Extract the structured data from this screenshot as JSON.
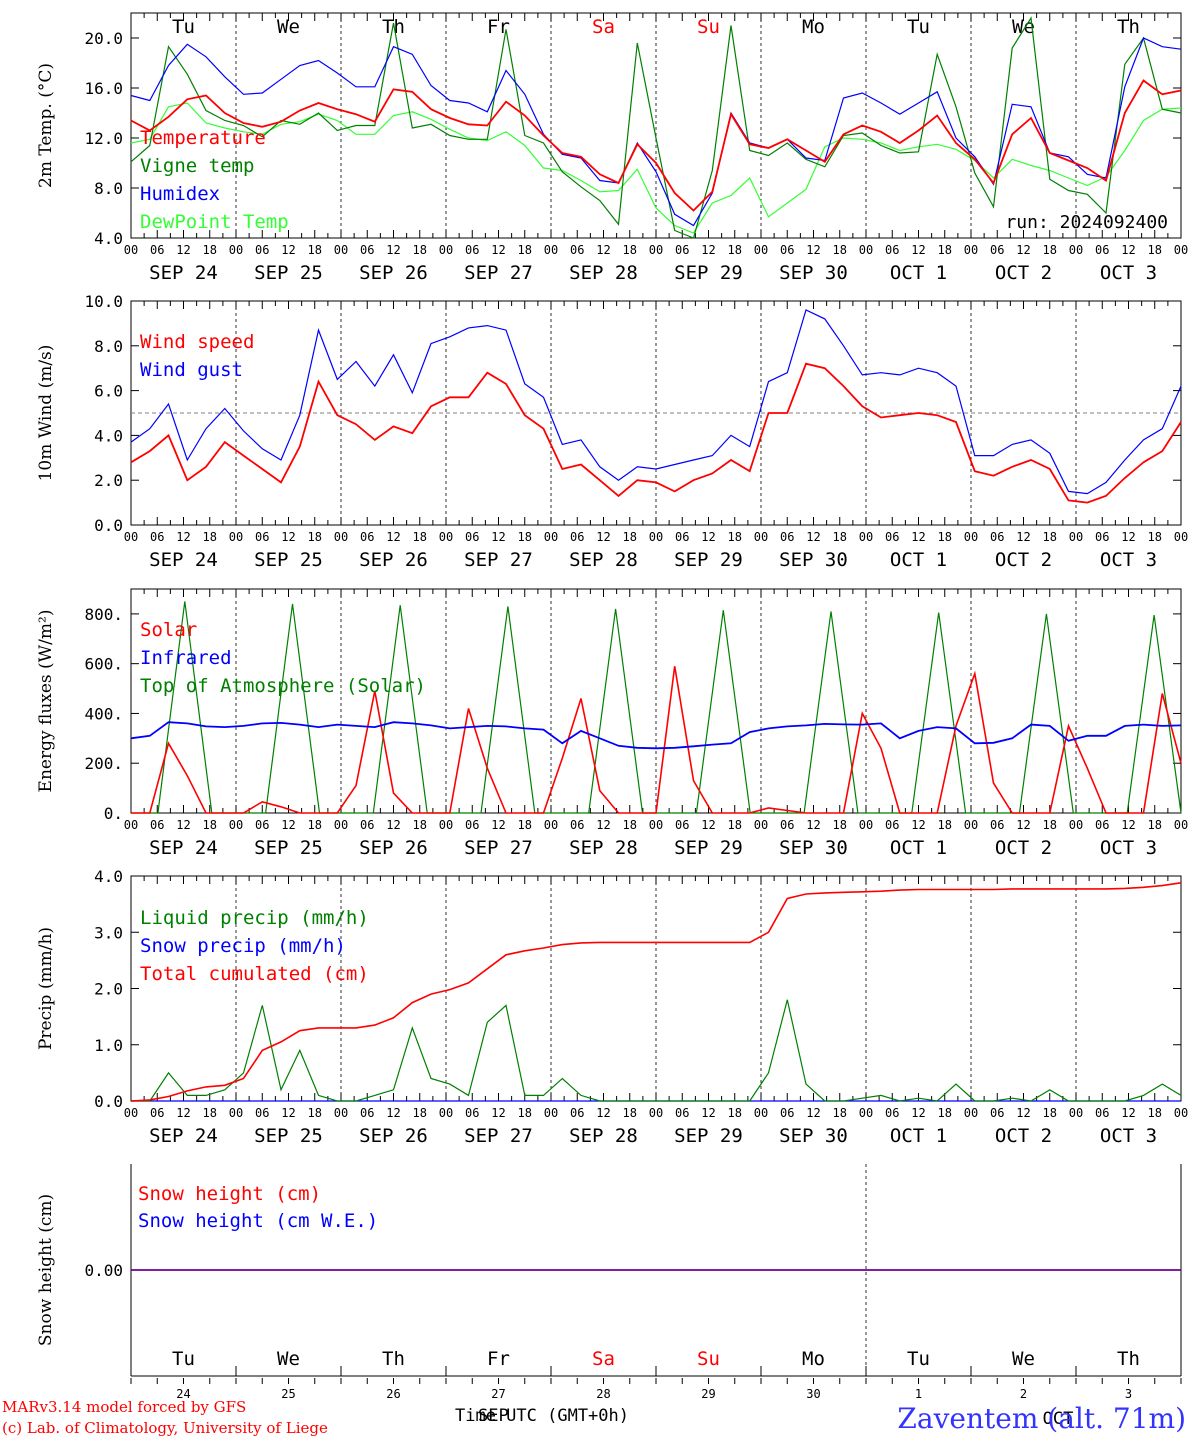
{
  "run_label": "run: 2024092400",
  "credits": {
    "line1": "MARv3.14 model forced by GFS",
    "line2": "(c) Lab. of Climatology, University of Liege"
  },
  "station": "Zaventem (alt. 71m)",
  "xaxis_title": "Time UTC (GMT+0h)",
  "xaxis_sep_month": "SEP",
  "xaxis_oct_month": "OCT",
  "colors": {
    "red": "#ff0000",
    "dark_green": "#008000",
    "blue": "#0000ff",
    "light_green": "#33ff33",
    "grey_line": "#808080",
    "purple": "#800080"
  },
  "day_letters": [
    "Tu",
    "We",
    "Th",
    "Fr",
    "Sa",
    "Su",
    "Mo",
    "Tu",
    "We",
    "Th"
  ],
  "weekend_day_indices": [
    4,
    5
  ],
  "date_labels": [
    "SEP 24",
    "SEP 25",
    "SEP 26",
    "SEP 27",
    "SEP 28",
    "SEP 29",
    "SEP 30",
    "OCT  1",
    "OCT  2",
    "OCT  3"
  ],
  "day_numbers": [
    "24",
    "25",
    "26",
    "27",
    "28",
    "29",
    "30",
    "1",
    "2",
    "3"
  ],
  "hour_ticks": [
    "00",
    "06",
    "12",
    "18"
  ],
  "end_tick": "00",
  "chart_data": [
    {
      "type": "line",
      "panel": "temperature",
      "ylabel": "2m Temp. (°C)",
      "ylim": [
        4,
        22
      ],
      "y_ticks": [
        "4.0",
        "8.0",
        "12.0",
        "16.0",
        "20.0"
      ],
      "x_step_hours": 6,
      "series": [
        {
          "name": "Temperature",
          "color": "red",
          "values": [
            13.4,
            12.6,
            13.7,
            15.1,
            15.4,
            14.0,
            13.2,
            12.9,
            13.3,
            14.2,
            14.8,
            14.3,
            13.9,
            13.3,
            15.9,
            15.7,
            14.3,
            13.6,
            13.1,
            13.0,
            14.9,
            13.8,
            12.2,
            10.8,
            10.5,
            9.1,
            8.4,
            11.5,
            10.0,
            7.6,
            6.2,
            7.7,
            13.9,
            11.5,
            11.2,
            11.9,
            11.0,
            10.1,
            12.3,
            13.0,
            12.5,
            11.6,
            12.6,
            13.8,
            11.6,
            10.3,
            8.4,
            12.3,
            13.6,
            10.8,
            10.2,
            9.6,
            8.6,
            14.0,
            16.6,
            15.5,
            15.8
          ]
        },
        {
          "name": "Vigne temp",
          "color": "dark_green",
          "values": [
            10.1,
            11.4,
            19.3,
            17.1,
            14.2,
            13.4,
            13.0,
            12.1,
            13.4,
            13.1,
            14.0,
            12.6,
            13.0,
            13.0,
            21.2,
            12.8,
            13.1,
            12.2,
            11.9,
            11.9,
            20.7,
            12.2,
            11.6,
            9.3,
            8.1,
            7.0,
            5.1,
            19.6,
            12.0,
            4.6,
            3.9,
            9.4,
            21.0,
            11.0,
            10.6,
            11.6,
            10.3,
            9.7,
            12.2,
            12.4,
            11.4,
            10.8,
            10.9,
            18.7,
            14.5,
            9.2,
            6.5,
            19.2,
            21.6,
            8.7,
            7.8,
            7.5,
            6.0,
            17.9,
            20.0,
            14.3,
            14.0
          ]
        },
        {
          "name": "Humidex",
          "color": "blue",
          "values": [
            15.4,
            15.0,
            17.8,
            19.5,
            18.5,
            16.9,
            15.5,
            15.6,
            16.7,
            17.8,
            18.2,
            17.2,
            16.1,
            16.1,
            19.3,
            18.7,
            16.2,
            15.0,
            14.8,
            14.1,
            17.4,
            15.5,
            12.3,
            10.7,
            10.4,
            8.6,
            8.4,
            11.6,
            9.3,
            5.9,
            5.0,
            7.6,
            14.0,
            11.6,
            11.2,
            11.9,
            10.4,
            10.2,
            15.2,
            15.6,
            14.8,
            13.9,
            14.8,
            15.7,
            12.0,
            10.5,
            8.3,
            14.7,
            14.5,
            10.8,
            10.5,
            9.1,
            8.8,
            16.1,
            20.0,
            19.3,
            19.1
          ]
        },
        {
          "name": "DewPoint Temp",
          "color": "light_green",
          "values": [
            11.6,
            11.9,
            14.5,
            14.8,
            13.2,
            12.8,
            12.5,
            12.3,
            13.1,
            13.3,
            13.9,
            13.4,
            12.3,
            12.3,
            13.8,
            14.1,
            13.5,
            12.7,
            12.0,
            11.8,
            12.5,
            11.4,
            9.6,
            9.4,
            8.6,
            7.7,
            7.8,
            9.5,
            6.4,
            5.0,
            4.4,
            6.8,
            7.4,
            8.8,
            5.7,
            6.8,
            7.9,
            11.3,
            12.0,
            11.9,
            11.6,
            11.0,
            11.3,
            11.5,
            11.1,
            10.2,
            8.8,
            10.3,
            9.8,
            9.4,
            8.8,
            8.2,
            8.9,
            11.0,
            13.4,
            14.3,
            14.4
          ]
        }
      ]
    },
    {
      "type": "line",
      "panel": "wind",
      "ylabel": "10m Wind (m/s)",
      "ylim": [
        0,
        10
      ],
      "y_ticks": [
        "0.0",
        "2.0",
        "4.0",
        "6.0",
        "8.0",
        "10.0"
      ],
      "reference_line": 5,
      "x_step_hours": 6,
      "series": [
        {
          "name": "Wind speed",
          "color": "red",
          "values": [
            2.8,
            3.3,
            4.0,
            2.0,
            2.6,
            3.7,
            3.1,
            2.5,
            1.9,
            3.5,
            6.4,
            4.9,
            4.5,
            3.8,
            4.4,
            4.1,
            5.3,
            5.7,
            5.7,
            6.8,
            6.3,
            4.9,
            4.3,
            2.5,
            2.7,
            2.0,
            1.3,
            2.0,
            1.9,
            1.5,
            2.0,
            2.3,
            2.9,
            2.4,
            5.0,
            5.0,
            7.2,
            7.0,
            6.2,
            5.3,
            4.8,
            4.9,
            5.0,
            4.9,
            4.6,
            2.4,
            2.2,
            2.6,
            2.9,
            2.5,
            1.1,
            1.0,
            1.3,
            2.1,
            2.8,
            3.3,
            4.6
          ]
        },
        {
          "name": "Wind gust",
          "color": "blue",
          "values": [
            3.7,
            4.3,
            5.4,
            2.9,
            4.3,
            5.2,
            4.2,
            3.4,
            2.9,
            4.9,
            8.7,
            6.5,
            7.3,
            6.2,
            7.6,
            5.9,
            8.1,
            8.4,
            8.8,
            8.9,
            8.7,
            6.3,
            5.7,
            3.6,
            3.8,
            2.6,
            2.0,
            2.6,
            2.5,
            2.7,
            2.9,
            3.1,
            4.0,
            3.5,
            6.4,
            6.8,
            9.6,
            9.2,
            8.0,
            6.7,
            6.8,
            6.7,
            7.0,
            6.8,
            6.2,
            3.1,
            3.1,
            3.6,
            3.8,
            3.2,
            1.5,
            1.4,
            1.9,
            2.9,
            3.8,
            4.3,
            6.2
          ]
        }
      ]
    },
    {
      "type": "line",
      "panel": "energy",
      "ylabel": "Energy fluxes (W/m²)",
      "ylim": [
        0,
        900
      ],
      "y_ticks": [
        "0.",
        "200.",
        "400.",
        "600.",
        "800."
      ],
      "x_step_hours": 6,
      "series": [
        {
          "name": "Solar",
          "color": "red",
          "values": [
            0,
            0,
            280,
            150,
            0,
            0,
            0,
            45,
            25,
            0,
            0,
            0,
            110,
            490,
            80,
            0,
            0,
            0,
            420,
            180,
            0,
            0,
            0,
            220,
            460,
            90,
            0,
            0,
            0,
            590,
            130,
            0,
            0,
            0,
            20,
            10,
            0,
            0,
            0,
            400,
            260,
            0,
            0,
            0,
            350,
            560,
            120,
            0,
            0,
            0,
            350,
            180,
            0,
            0,
            0,
            480,
            200
          ]
        },
        {
          "name": "Infrared",
          "color": "blue",
          "values": [
            300,
            310,
            365,
            360,
            348,
            345,
            350,
            360,
            362,
            355,
            345,
            355,
            350,
            345,
            365,
            360,
            352,
            340,
            345,
            350,
            348,
            340,
            335,
            280,
            330,
            300,
            270,
            262,
            260,
            262,
            268,
            275,
            280,
            325,
            340,
            348,
            352,
            358,
            356,
            355,
            360,
            300,
            330,
            345,
            340,
            280,
            282,
            300,
            355,
            350,
            290,
            310,
            310,
            350,
            355,
            350,
            352
          ]
        },
        {
          "name": "Top of Atmosphere (Solar)",
          "color": "dark_green",
          "values": [
            0,
            0,
            850,
            0,
            0,
            0,
            840,
            0,
            0,
            0,
            835,
            0,
            0,
            0,
            830,
            0,
            0,
            0,
            820,
            0,
            0,
            0,
            815,
            0,
            0,
            0,
            810,
            0,
            0,
            0,
            805,
            0,
            0,
            0,
            800,
            0,
            0,
            0,
            795,
            0
          ]
        }
      ]
    },
    {
      "type": "line",
      "panel": "precipitation",
      "ylabel": "Precip (mm/h)",
      "ylim": [
        0,
        4
      ],
      "y_ticks": [
        "0.0",
        "1.0",
        "2.0",
        "3.0",
        "4.0"
      ],
      "x_step_hours": 6,
      "series": [
        {
          "name": "Liquid precip (mm/h)",
          "color": "dark_green",
          "values": [
            0,
            0,
            0.5,
            0.1,
            0.1,
            0.2,
            0.5,
            1.7,
            0.2,
            0.9,
            0.1,
            0,
            0,
            0.1,
            0.2,
            1.3,
            0.4,
            0.3,
            0.1,
            1.4,
            1.7,
            0.1,
            0.1,
            0.4,
            0.1,
            0,
            0,
            0,
            0,
            0,
            0,
            0,
            0,
            0,
            0.5,
            1.8,
            0.3,
            0,
            0,
            0.05,
            0.1,
            0,
            0.05,
            0,
            0.3,
            0,
            0,
            0.05,
            0,
            0.2,
            0,
            0,
            0,
            0,
            0.1,
            0.3,
            0.1
          ]
        },
        {
          "name": "Snow precip (mm/h)",
          "color": "blue",
          "values": [
            0,
            0,
            0,
            0,
            0,
            0,
            0,
            0,
            0,
            0,
            0,
            0,
            0,
            0,
            0,
            0,
            0,
            0,
            0,
            0,
            0,
            0,
            0,
            0,
            0,
            0,
            0,
            0,
            0,
            0,
            0,
            0,
            0,
            0,
            0,
            0,
            0,
            0,
            0,
            0,
            0
          ]
        },
        {
          "name": "Total cumulated (cm)",
          "color": "red",
          "values": [
            0,
            0.02,
            0.08,
            0.18,
            0.25,
            0.28,
            0.4,
            0.9,
            1.05,
            1.25,
            1.3,
            1.3,
            1.3,
            1.35,
            1.48,
            1.75,
            1.9,
            1.98,
            2.1,
            2.35,
            2.6,
            2.67,
            2.72,
            2.78,
            2.81,
            2.82,
            2.82,
            2.82,
            2.82,
            2.82,
            2.82,
            2.82,
            2.82,
            2.82,
            3.0,
            3.6,
            3.68,
            3.7,
            3.71,
            3.72,
            3.73,
            3.75,
            3.76,
            3.76,
            3.76,
            3.76,
            3.76,
            3.77,
            3.77,
            3.77,
            3.77,
            3.77,
            3.77,
            3.78,
            3.8,
            3.83,
            3.88
          ]
        }
      ]
    },
    {
      "type": "line",
      "panel": "snow",
      "ylabel": "Snow height (cm)",
      "ylim": [
        -1,
        1
      ],
      "y_ticks": [
        "0.00"
      ],
      "series": [
        {
          "name": "Snow height (cm)",
          "color": "red",
          "values": [
            0,
            0
          ]
        },
        {
          "name": "Snow height (cm W.E.)",
          "color": "blue",
          "values": [
            0,
            0
          ]
        }
      ]
    }
  ]
}
